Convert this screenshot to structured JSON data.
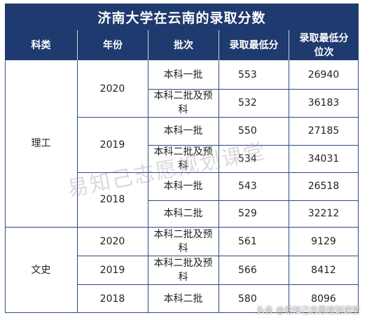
{
  "title": "济南大学在云南的录取分数",
  "headers": [
    "科类",
    "年份",
    "批次",
    "录取最低分",
    "录取最低分位次"
  ],
  "categories": [
    "理工",
    "文史"
  ],
  "years": [
    "2020",
    "2019",
    "2018",
    "2020",
    "2019",
    "2018"
  ],
  "rows": [
    {
      "batch": "本科一批",
      "score": "553",
      "rank": "26940"
    },
    {
      "batch": "本科二批及预科",
      "score": "532",
      "rank": "36183"
    },
    {
      "batch": "本科一批",
      "score": "550",
      "rank": "27185"
    },
    {
      "batch": "本科二批及预科",
      "score": "534",
      "rank": "34031"
    },
    {
      "batch": "本科一批",
      "score": "543",
      "rank": "26518"
    },
    {
      "batch": "本科二批",
      "score": "529",
      "rank": "32212"
    },
    {
      "batch": "本科二批及预科",
      "score": "561",
      "rank": "9129"
    },
    {
      "batch": "本科二批及预科",
      "score": "566",
      "rank": "8412"
    },
    {
      "batch": "本科二批",
      "score": "580",
      "rank": "8096"
    }
  ],
  "watermark": "易知己志愿规划课堂",
  "footer": "头条 @易知己志愿规划课堂"
}
